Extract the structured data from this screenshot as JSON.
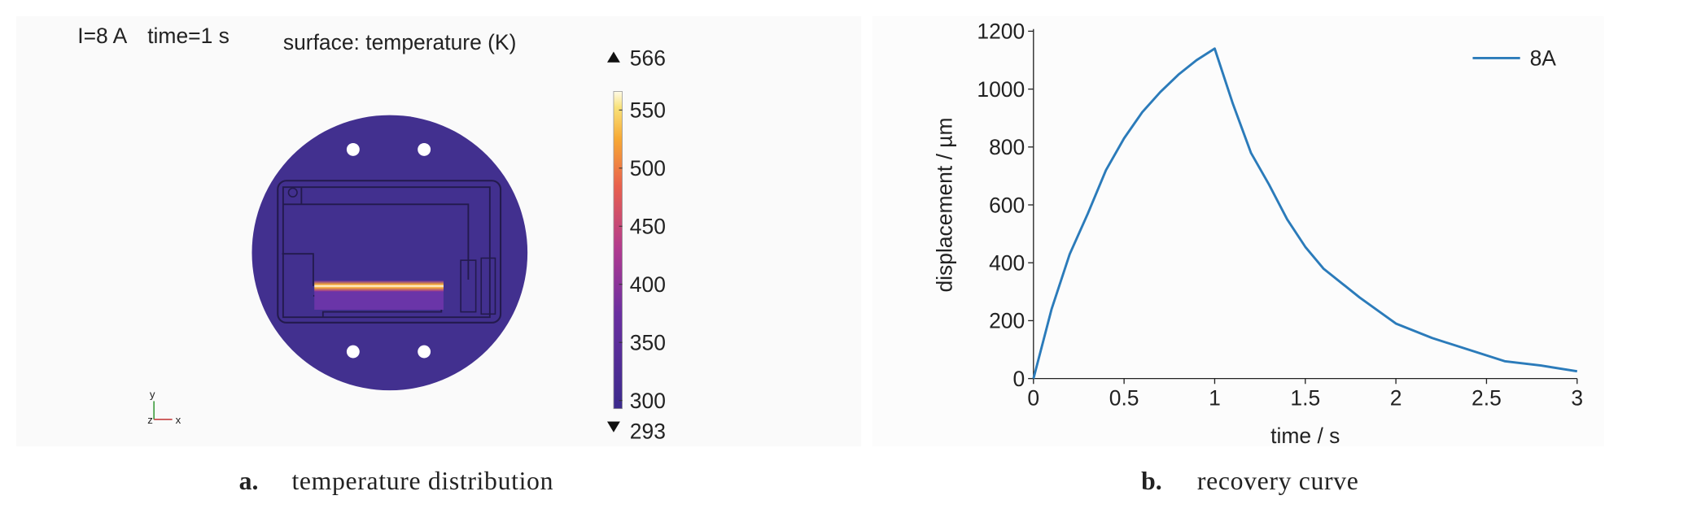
{
  "figure_a": {
    "condition_current": "I=8 A",
    "condition_time": "time=1 s",
    "surface_title": "surface: temperature (K)",
    "colorbar": {
      "max": 566,
      "min": 293,
      "ticks": [
        300,
        350,
        400,
        450,
        500,
        550
      ]
    },
    "axis_triad": [
      "y",
      "z",
      "x"
    ]
  },
  "chart_data": {
    "type": "line",
    "xlabel": "time / s",
    "ylabel": "displacement / µm",
    "x": [
      0,
      0.1,
      0.2,
      0.3,
      0.4,
      0.5,
      0.6,
      0.7,
      0.8,
      0.9,
      1.0,
      1.1,
      1.2,
      1.3,
      1.4,
      1.5,
      1.6,
      1.8,
      2.0,
      2.2,
      2.4,
      2.6,
      2.8,
      3.0
    ],
    "series": [
      {
        "name": "8A",
        "color": "#2b7bba",
        "values": [
          0,
          240,
          430,
          570,
          720,
          830,
          920,
          990,
          1050,
          1100,
          1140,
          950,
          780,
          670,
          550,
          455,
          380,
          280,
          190,
          140,
          100,
          60,
          45,
          25
        ]
      }
    ],
    "xlim": [
      0,
      3
    ],
    "xticks": [
      0,
      0.5,
      1,
      1.5,
      2,
      2.5,
      3
    ],
    "ylim": [
      0,
      1200
    ],
    "yticks": [
      0,
      200,
      400,
      600,
      800,
      1000,
      1200
    ],
    "grid": false,
    "legend": "upper right"
  },
  "captions": {
    "a_label": "a.",
    "a_text": "temperature distribution",
    "b_label": "b.",
    "b_text": "recovery curve"
  }
}
